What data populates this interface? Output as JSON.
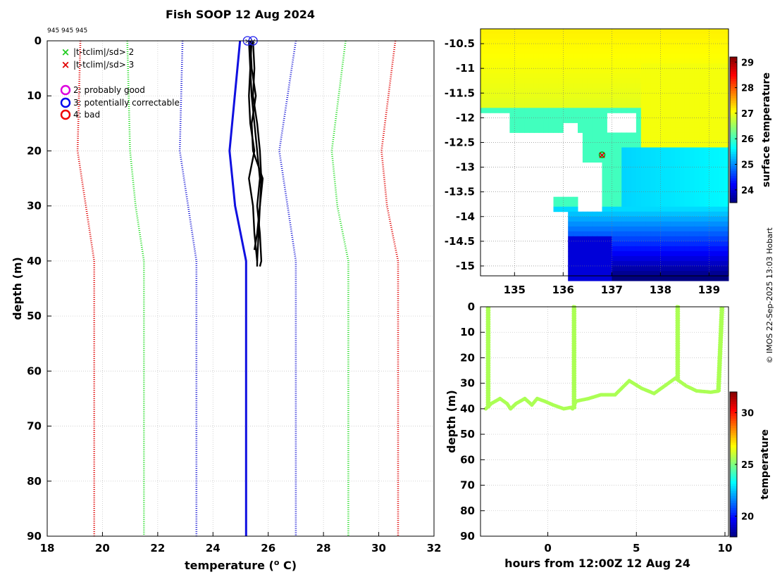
{
  "title": "Fish SOOP 12 Aug 2024",
  "subtitle_ids": "945 945 945",
  "credit": "© IMOS 22-Sep-2025 13:03 Hobart",
  "colors": {
    "red": "#e00000",
    "green": "#22dd22",
    "blue": "#1a1ad6",
    "profile": "#000000",
    "mean": "#1010e0"
  },
  "chart_data": [
    {
      "id": "profile",
      "type": "line",
      "xlabel": "temperature (",
      "xlabel_sup": "o",
      "xlabel_unit": " C)",
      "ylabel": "depth (m)",
      "xlim": [
        18,
        32
      ],
      "ylim": [
        90,
        0
      ],
      "xticks": [
        18,
        20,
        22,
        24,
        26,
        28,
        30,
        32
      ],
      "yticks": [
        0,
        10,
        20,
        30,
        40,
        50,
        60,
        70,
        80,
        90
      ],
      "legend": [
        {
          "marker": "x",
          "color": "#22cc22",
          "label": "|t-tclim|/sd> 2"
        },
        {
          "marker": "x",
          "color": "#e00000",
          "label": "|t-tclim|/sd> 3"
        },
        {
          "marker": "o",
          "color": "#dd00dd",
          "label": "2: probably good"
        },
        {
          "marker": "o",
          "color": "#0000ee",
          "label": "3: potentially correctable"
        },
        {
          "marker": "o",
          "color": "#ee0000",
          "label": "4: bad"
        }
      ],
      "depths": [
        0,
        20,
        30,
        40,
        90
      ],
      "series": [
        {
          "name": "clim -3sd",
          "style": "dotted",
          "color": "#e00000",
          "temps": [
            19.2,
            19.1,
            19.4,
            19.7,
            19.7
          ]
        },
        {
          "name": "clim -2sd",
          "style": "dotted",
          "color": "#22dd22",
          "temps": [
            20.9,
            21.0,
            21.2,
            21.5,
            21.5
          ]
        },
        {
          "name": "clim -1sd",
          "style": "dotted",
          "color": "#1a1ad6",
          "temps": [
            22.9,
            22.8,
            23.1,
            23.4,
            23.4
          ]
        },
        {
          "name": "clim mean",
          "style": "solid",
          "color": "#1010e0",
          "temps": [
            24.98,
            24.6,
            24.8,
            25.2,
            25.2
          ]
        },
        {
          "name": "clim +1sd",
          "style": "dotted",
          "color": "#1a1ad6",
          "temps": [
            27.0,
            26.4,
            26.7,
            27.0,
            27.0
          ]
        },
        {
          "name": "clim +2sd",
          "style": "dotted",
          "color": "#22dd22",
          "temps": [
            28.8,
            28.3,
            28.5,
            28.9,
            28.9
          ]
        },
        {
          "name": "clim +3sd",
          "style": "dotted",
          "color": "#e00000",
          "temps": [
            30.6,
            30.1,
            30.3,
            30.7,
            30.7
          ]
        }
      ],
      "profiles": [
        {
          "depths": [
            0,
            5,
            10,
            15,
            20,
            25,
            30,
            35,
            40,
            41
          ],
          "temps": [
            25.3,
            25.35,
            25.4,
            25.5,
            25.6,
            25.7,
            25.6,
            25.7,
            25.75,
            25.7
          ]
        },
        {
          "depths": [
            0,
            5,
            10,
            15,
            20,
            25,
            30,
            35,
            40,
            41
          ],
          "temps": [
            25.4,
            25.35,
            25.3,
            25.35,
            25.5,
            25.3,
            25.45,
            25.5,
            25.6,
            25.6
          ]
        },
        {
          "depths": [
            0,
            5,
            10,
            15,
            20,
            25,
            30,
            35,
            38
          ],
          "temps": [
            25.45,
            25.5,
            25.45,
            25.6,
            25.7,
            25.75,
            25.7,
            25.6,
            25.5
          ]
        },
        {
          "depths": [
            0,
            5,
            10,
            15,
            20,
            25,
            30,
            35,
            40
          ],
          "temps": [
            25.35,
            25.4,
            25.55,
            25.4,
            25.45,
            25.8,
            25.7,
            25.65,
            25.6
          ]
        }
      ],
      "surface_markers": [
        {
          "temp": 25.25,
          "depth": 0
        },
        {
          "temp": 25.45,
          "depth": 0
        }
      ]
    },
    {
      "id": "map",
      "type": "heatmap",
      "xlim": [
        134.3,
        139.4
      ],
      "ylim": [
        -15.2,
        -10.2
      ],
      "xticks": [
        135,
        136,
        137,
        138,
        139
      ],
      "yticks": [
        -10.5,
        -11,
        -11.5,
        -12,
        -12.5,
        -13,
        -13.5,
        -14,
        -14.5,
        -15
      ],
      "ytick_labels": [
        "-10.5",
        "-11",
        "-11.5",
        "-12",
        "-12.5",
        "-13",
        "-13.5",
        "-14",
        "-14.5",
        "-15"
      ],
      "colorbar_label": "surface temperature",
      "colorbar_range": [
        23.5,
        29.2
      ],
      "colorbar_ticks": [
        24,
        25,
        26,
        27,
        28,
        29
      ],
      "station": {
        "lon": 136.8,
        "lat": -12.75
      }
    },
    {
      "id": "timeseries",
      "type": "scatter",
      "xlabel": "hours from 12:00Z 12 Aug 24",
      "ylabel": "depth (m)",
      "xlim": [
        -3.8,
        10.2
      ],
      "ylim": [
        90,
        0
      ],
      "xticks": [
        0,
        5,
        10
      ],
      "yticks": [
        0,
        10,
        20,
        30,
        40,
        50,
        60,
        70,
        80,
        90
      ],
      "colorbar_label": "temperature",
      "colorbar_range": [
        18,
        32
      ],
      "colorbar_ticks": [
        20,
        25,
        30
      ],
      "point_temperature": 25.6,
      "track": [
        [
          -3.5,
          40
        ],
        [
          -3.2,
          38
        ],
        [
          -2.7,
          36
        ],
        [
          -2.3,
          38
        ],
        [
          -2.1,
          40
        ],
        [
          -1.8,
          38
        ],
        [
          -1.3,
          36
        ],
        [
          -0.9,
          38.5
        ],
        [
          -0.6,
          36
        ],
        [
          -0.2,
          37
        ],
        [
          0.3,
          38.5
        ],
        [
          0.9,
          40
        ],
        [
          1.3,
          39.5
        ],
        [
          1.4,
          40
        ],
        [
          1.6,
          37
        ],
        [
          2.3,
          36
        ],
        [
          3.0,
          34.5
        ],
        [
          3.8,
          34.5
        ],
        [
          4.6,
          29
        ],
        [
          5.3,
          32
        ],
        [
          6.0,
          34
        ],
        [
          6.8,
          30
        ],
        [
          7.2,
          28
        ],
        [
          7.8,
          31
        ],
        [
          8.4,
          33
        ],
        [
          9.2,
          33.5
        ],
        [
          9.7,
          33
        ]
      ],
      "casts": [
        {
          "t": -3.4,
          "top": 0.5,
          "bottom": 40
        },
        {
          "t": 1.45,
          "top": 0.0,
          "bottom": 40
        },
        {
          "t": 7.3,
          "top": 0.0,
          "bottom": 28
        },
        {
          "t": 9.8,
          "top": 0.5,
          "bottom": 33,
          "t_bottom": 9.6
        }
      ]
    }
  ]
}
